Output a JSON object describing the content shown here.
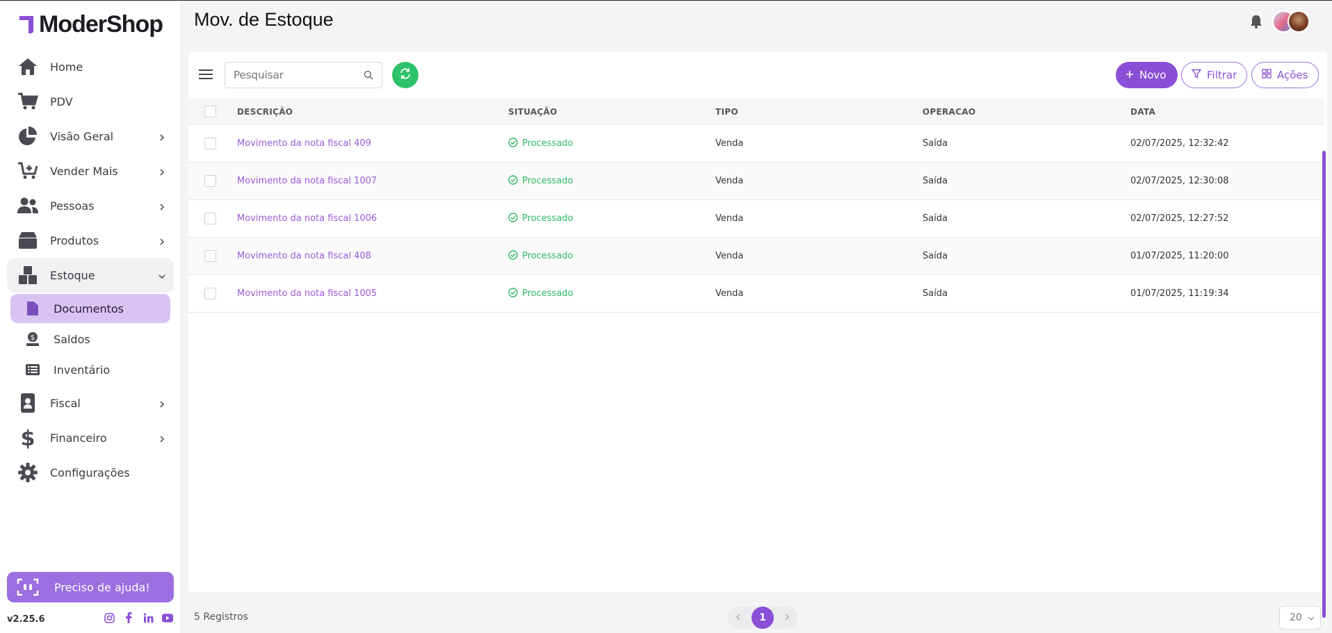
{
  "app": {
    "logo_text": "ModerShop",
    "brand_color": "#8a4fd6",
    "version": "v2.25.6"
  },
  "sidebar": {
    "items": [
      {
        "label": "Home",
        "icon": "home-icon",
        "has_children": false
      },
      {
        "label": "PDV",
        "icon": "cart-icon",
        "has_children": false
      },
      {
        "label": "Visão Geral",
        "icon": "pie-chart-icon",
        "has_children": true
      },
      {
        "label": "Vender Mais",
        "icon": "cart-plus-icon",
        "has_children": true
      },
      {
        "label": "Pessoas",
        "icon": "users-icon",
        "has_children": true
      },
      {
        "label": "Produtos",
        "icon": "box-icon",
        "has_children": true
      },
      {
        "label": "Estoque",
        "icon": "boxes-icon",
        "has_children": true,
        "expanded": true
      },
      {
        "label": "Fiscal",
        "icon": "id-badge-icon",
        "has_children": true
      },
      {
        "label": "Financeiro",
        "icon": "dollar-icon",
        "has_children": true
      },
      {
        "label": "Configurações",
        "icon": "gear-icon",
        "has_children": false
      }
    ],
    "estoque_sub": [
      {
        "label": "Documentos",
        "icon": "file-icon",
        "active": true
      },
      {
        "label": "Saldos",
        "icon": "balance-icon",
        "active": false
      },
      {
        "label": "Inventário",
        "icon": "list-icon",
        "active": false
      }
    ],
    "help_label": "Preciso de ajuda!"
  },
  "header": {
    "title": "Mov. de Estoque"
  },
  "toolbar": {
    "search_placeholder": "Pesquisar",
    "novo_label": "Novo",
    "filtrar_label": "Filtrar",
    "acoes_label": "Ações"
  },
  "table": {
    "columns": [
      "DESCRIÇÃO",
      "SITUAÇÃO",
      "TIPO",
      "OPERACAO",
      "DATA"
    ],
    "rows": [
      {
        "descricao": "Movimento da nota fiscal 409",
        "situacao": "Processado",
        "tipo": "Venda",
        "operacao": "Saída",
        "data": "02/07/2025, 12:32:42"
      },
      {
        "descricao": "Movimento da nota fiscal 1007",
        "situacao": "Processado",
        "tipo": "Venda",
        "operacao": "Saída",
        "data": "02/07/2025, 12:30:08"
      },
      {
        "descricao": "Movimento da nota fiscal 1006",
        "situacao": "Processado",
        "tipo": "Venda",
        "operacao": "Saída",
        "data": "02/07/2025, 12:27:52"
      },
      {
        "descricao": "Movimento da nota fiscal 408",
        "situacao": "Processado",
        "tipo": "Venda",
        "operacao": "Saída",
        "data": "01/07/2025, 11:20:00"
      },
      {
        "descricao": "Movimento da nota fiscal 1005",
        "situacao": "Processado",
        "tipo": "Venda",
        "operacao": "Saída",
        "data": "01/07/2025, 11:19:34"
      }
    ]
  },
  "footer": {
    "count": "5 Registros",
    "current_page": "1",
    "per_page": "20"
  }
}
